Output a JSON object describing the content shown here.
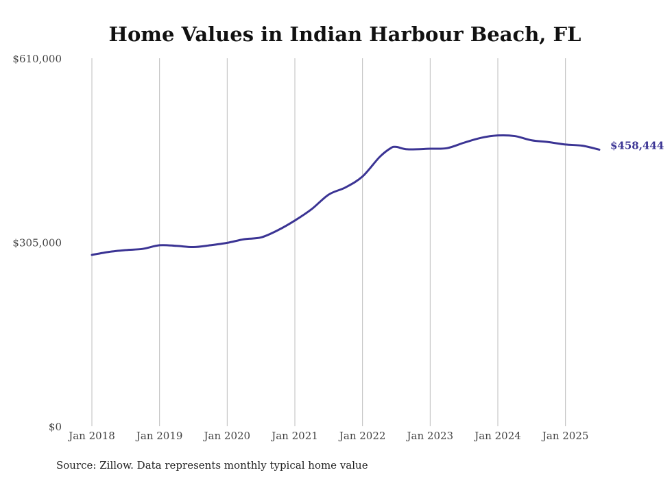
{
  "chart_data": {
    "type": "line",
    "title": "Home Values in Indian Harbour Beach, FL",
    "xlabel": "",
    "ylabel": "",
    "ylim": [
      0,
      610000
    ],
    "yticks": [
      {
        "value": 0,
        "label": "$0"
      },
      {
        "value": 305000,
        "label": "$305,000"
      },
      {
        "value": 610000,
        "label": "$610,000"
      }
    ],
    "xlim": [
      "2018-01",
      "2025-07"
    ],
    "xticks": [
      {
        "date": "2018-01",
        "label": "Jan 2018"
      },
      {
        "date": "2019-01",
        "label": "Jan 2019"
      },
      {
        "date": "2020-01",
        "label": "Jan 2020"
      },
      {
        "date": "2021-01",
        "label": "Jan 2021"
      },
      {
        "date": "2022-01",
        "label": "Jan 2022"
      },
      {
        "date": "2023-01",
        "label": "Jan 2023"
      },
      {
        "date": "2024-01",
        "label": "Jan 2024"
      },
      {
        "date": "2025-01",
        "label": "Jan 2025"
      }
    ],
    "grid": {
      "vertical": true,
      "horizontal": false
    },
    "color": "#3b3494",
    "series": [
      {
        "x": [
          "2018-01",
          "2018-04",
          "2018-07",
          "2018-10",
          "2019-01",
          "2019-04",
          "2019-07",
          "2019-10",
          "2020-01",
          "2020-04",
          "2020-07",
          "2020-10",
          "2021-01",
          "2021-04",
          "2021-07",
          "2021-10",
          "2022-01",
          "2022-04",
          "2022-06",
          "2022-07",
          "2022-09",
          "2023-01",
          "2023-04",
          "2023-07",
          "2023-10",
          "2024-01",
          "2024-04",
          "2024-07",
          "2024-10",
          "2025-01",
          "2025-04",
          "2025-07"
        ],
        "y": [
          284000,
          289000,
          292000,
          294000,
          300000,
          299000,
          297000,
          300000,
          304000,
          310000,
          313000,
          325000,
          341000,
          360000,
          384000,
          396000,
          414000,
          446000,
          461000,
          463000,
          459000,
          460000,
          461000,
          470000,
          478000,
          482000,
          481000,
          474000,
          471000,
          467000,
          465000,
          458444
        ]
      }
    ],
    "end_label": "$458,444",
    "source": "Source: Zillow. Data represents monthly typical home value"
  }
}
